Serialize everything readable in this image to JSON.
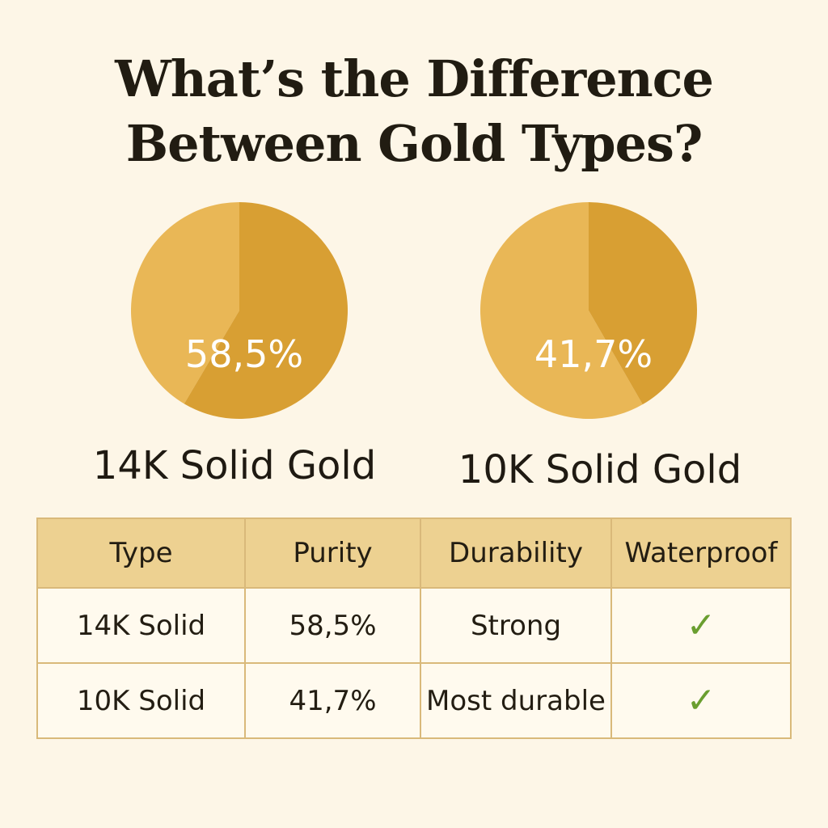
{
  "title_lines": [
    "What’s the Difference",
    "Between Gold Types?"
  ],
  "colors": {
    "background": "#fdf6e7",
    "pie_dark": "#d89f33",
    "pie_light": "#e9b756",
    "header": "#edd191",
    "check": "#6a9e2f"
  },
  "chart_data": [
    {
      "type": "pie",
      "title": "14K Solid Gold",
      "values": [
        58.5,
        41.5
      ],
      "center_label": "58,5%"
    },
    {
      "type": "pie",
      "title": "10K Solid Gold",
      "values": [
        41.7,
        58.3
      ],
      "center_label": "41,7%"
    }
  ],
  "table": {
    "headers": [
      "Type",
      "Purity",
      "Durability",
      "Waterproof"
    ],
    "rows": [
      {
        "type": "14K Solid",
        "purity": "58,5%",
        "durability": "Strong",
        "waterproof": "✓"
      },
      {
        "type": "10K Solid",
        "purity": "41,7%",
        "durability": "Most durable",
        "waterproof": "✓"
      }
    ],
    "waterproof_icon": "check-icon"
  }
}
